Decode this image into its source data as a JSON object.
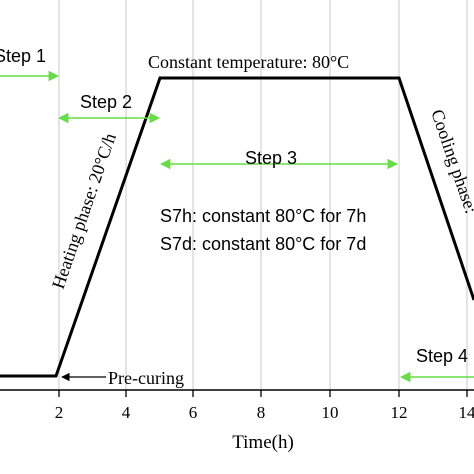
{
  "x_axis": {
    "label": "Time(h)",
    "ticks": [
      "2",
      "4",
      "6",
      "8",
      "10",
      "12",
      "14"
    ]
  },
  "annotations": {
    "constant_temperature": "Constant temperature: 80°C",
    "heating_phase": "Heating phase: 20°C/h",
    "cooling_phase": "Cooling phase:",
    "pre_curing": "Pre-curing",
    "step1": "Step 1",
    "step2": "Step 2",
    "step3": "Step 3",
    "step4": "Step 4",
    "s7h": "S7h: constant 80°C for 7h",
    "s7d": "S7d: constant 80°C for 7d"
  },
  "colors": {
    "profile_line": "#000000",
    "step_arrows": "#66dd44",
    "grid": "#c8c8c8"
  },
  "profile": {
    "description_points": [
      {
        "time_h": 0,
        "stage": "pre-curing start"
      },
      {
        "time_h": 2,
        "stage": "heating start"
      },
      {
        "time_h": 5,
        "stage": "constant start"
      },
      {
        "time_h": 12,
        "stage": "cooling start"
      },
      {
        "time_h": 14.3,
        "stage": "cooling end"
      }
    ]
  }
}
